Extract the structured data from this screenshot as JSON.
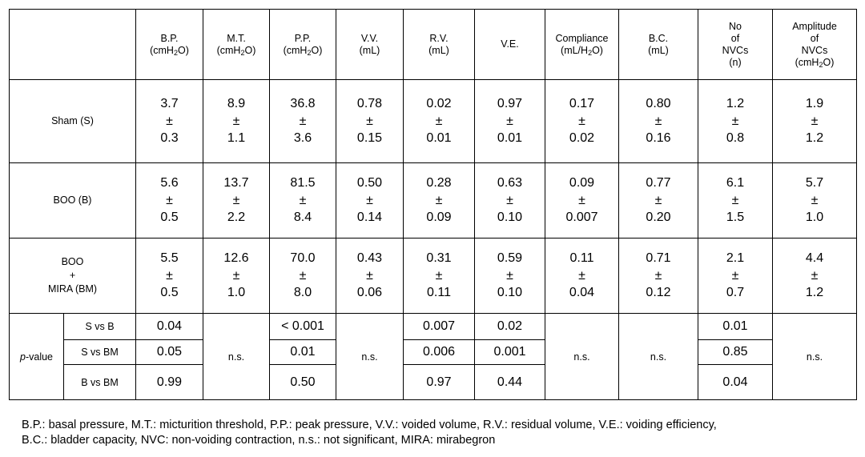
{
  "headers": [
    {
      "l1": "B.P.",
      "l2a": "(cmH",
      "sub": "2",
      "l2b": "O)"
    },
    {
      "l1": "M.T.",
      "l2a": "(cmH",
      "sub": "2",
      "l2b": "O)"
    },
    {
      "l1": "P.P.",
      "l2a": "(cmH",
      "sub": "2",
      "l2b": "O)"
    },
    {
      "l1": "V.V.",
      "l2": "(mL)"
    },
    {
      "l1": "R.V.",
      "l2": "(mL)"
    },
    {
      "l1": "V.E."
    },
    {
      "l1": "Compliance",
      "l2a": "(mL/H",
      "sub": "2",
      "l2b": "O)"
    },
    {
      "l1": "B.C.",
      "l2": "(mL)"
    },
    {
      "l1": "No",
      "l2": "of",
      "l3": "NVCs",
      "l4": "(n)"
    },
    {
      "l1": "Amplitude",
      "l2": "of",
      "l3": "NVCs",
      "l4a": "(cmH",
      "sub": "2",
      "l4b": "O)"
    }
  ],
  "groups": [
    {
      "label": "Sham (S)",
      "cells": [
        [
          "3.7",
          "±",
          "0.3"
        ],
        [
          "8.9",
          "±",
          "1.1"
        ],
        [
          "36.8",
          "±",
          "3.6"
        ],
        [
          "0.78",
          "±",
          "0.15"
        ],
        [
          "0.02",
          "±",
          "0.01"
        ],
        [
          "0.97",
          "±",
          "0.01"
        ],
        [
          "0.17",
          "±",
          "0.02"
        ],
        [
          "0.80",
          "±",
          "0.16"
        ],
        [
          "1.2",
          "±",
          "0.8"
        ],
        [
          "1.9",
          "±",
          "1.2"
        ]
      ]
    },
    {
      "label": "BOO (B)",
      "cells": [
        [
          "5.6",
          "±",
          "0.5"
        ],
        [
          "13.7",
          "±",
          "2.2"
        ],
        [
          "81.5",
          "±",
          "8.4"
        ],
        [
          "0.50",
          "±",
          "0.14"
        ],
        [
          "0.28",
          "±",
          "0.09"
        ],
        [
          "0.63",
          "±",
          "0.10"
        ],
        [
          "0.09",
          "±",
          "0.007"
        ],
        [
          "0.77",
          "±",
          "0.20"
        ],
        [
          "6.1",
          "±",
          "1.5"
        ],
        [
          "5.7",
          "±",
          "1.0"
        ]
      ]
    },
    {
      "label_lines": [
        "BOO",
        "+",
        "MIRA (BM)"
      ],
      "cells": [
        [
          "5.5",
          "±",
          "0.5"
        ],
        [
          "12.6",
          "±",
          "1.0"
        ],
        [
          "70.0",
          "±",
          "8.0"
        ],
        [
          "0.43",
          "±",
          "0.06"
        ],
        [
          "0.31",
          "±",
          "0.11"
        ],
        [
          "0.59",
          "±",
          "0.10"
        ],
        [
          "0.11",
          "±",
          "0.04"
        ],
        [
          "0.71",
          "±",
          "0.12"
        ],
        [
          "2.1",
          "±",
          "0.7"
        ],
        [
          "4.4",
          "±",
          "1.2"
        ]
      ]
    }
  ],
  "pvalue": {
    "label_italic": "p",
    "label_rest": "-value",
    "ns": "n.s.",
    "comparisons": [
      "S vs B",
      "S vs BM",
      "B vs BM"
    ],
    "bp": [
      "0.04",
      "0.05",
      "0.99"
    ],
    "pp": [
      "< 0.001",
      "0.01",
      "0.50"
    ],
    "rv": [
      "0.007",
      "0.006",
      "0.97"
    ],
    "ve": [
      "0.02",
      "0.001",
      "0.44"
    ],
    "nvc": [
      "0.01",
      "0.85",
      "0.04"
    ]
  },
  "footnote": {
    "line1": "B.P.: basal pressure, M.T.: micturition threshold, P.P.: peak pressure, V.V.: voided volume, R.V.: residual volume, V.E.: voiding efficiency,",
    "line2": "B.C.: bladder capacity, NVC: non-voiding contraction, n.s.: not significant, MIRA: mirabegron"
  }
}
